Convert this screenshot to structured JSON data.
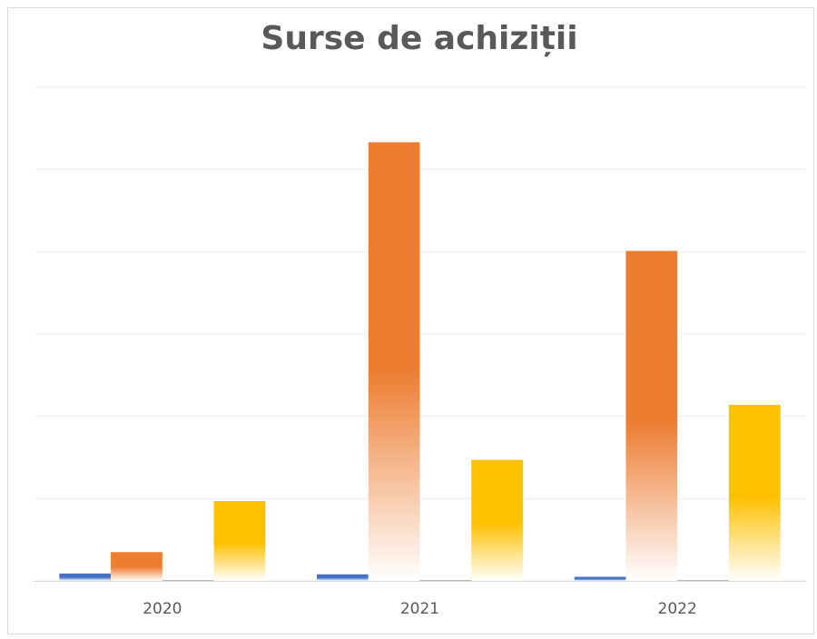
{
  "chart_data": {
    "type": "bar",
    "title": "Surse de achiziții",
    "categories": [
      "2020",
      "2021",
      "2022"
    ],
    "series": [
      {
        "color": "#4472c4",
        "values": [
          0.09,
          0.08,
          0.05
        ]
      },
      {
        "color": "#ed7d31",
        "values": [
          0.35,
          5.33,
          4.01
        ]
      },
      {
        "color": "#a5a5a5",
        "values": [
          0.01,
          0.01,
          0.01
        ]
      },
      {
        "color": "#ffc000",
        "values": [
          0.97,
          1.47,
          2.14
        ]
      }
    ],
    "ylim": [
      0,
      6
    ],
    "yticks": [
      0,
      1,
      2,
      3,
      4,
      5,
      6
    ],
    "grid": true,
    "gradient_fill": true
  }
}
